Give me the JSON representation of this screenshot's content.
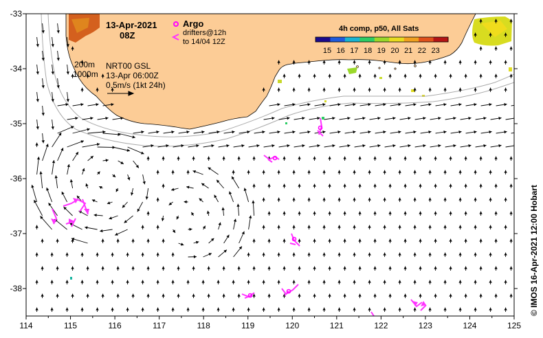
{
  "map": {
    "date": "13-Apr-2021",
    "time": "08Z",
    "argo_label": "Argo",
    "drifters_line1": "drifters@12h",
    "drifters_line2": "to 14/04 12Z",
    "depth_200": "200m",
    "depth_1000": "1000m",
    "nrt_product": "NRT00 GSL",
    "nrt_time": "13-Apr 06:00Z",
    "scale_label": "0.5m/s (1kt 24h)",
    "colorbar_title": "4h comp, p50, All Sats",
    "colorbar_ticks": [
      "15",
      "16",
      "17",
      "18",
      "19",
      "20",
      "21",
      "22",
      "23"
    ],
    "credit": "© IMOS 16-Apr-2021 12:00 Hobart",
    "x_ticks": [
      "114",
      "115",
      "116",
      "117",
      "118",
      "119",
      "120",
      "121",
      "122",
      "123",
      "124",
      "125"
    ],
    "y_ticks": [
      "-33",
      "-34",
      "-35",
      "-36",
      "-37",
      "-38"
    ],
    "colors": {
      "land": "#fccc96",
      "argo": "#ff00ff",
      "drifter": "#ff33ff",
      "colorbar": [
        "#1a0a8c",
        "#1e5adc",
        "#18b4d2",
        "#2ccc64",
        "#9ad82a",
        "#e8dc1e",
        "#f0a01e",
        "#e0501a",
        "#b41414"
      ]
    },
    "icons": [
      "argo-float-icon",
      "drifter-arrow-icon"
    ]
  }
}
